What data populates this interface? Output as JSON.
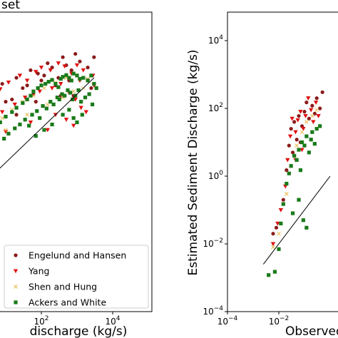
{
  "chart_data": [
    {
      "type": "scatter",
      "title": "set",
      "xlabel": "discharge (kg/s)",
      "ylabel": "",
      "xscale": "log",
      "yscale": "log",
      "xlim_visible": [
        0.1,
        100000
      ],
      "ylim_visible": [
        0.1,
        100000
      ],
      "x_tick_labels": [
        "10^2",
        "10^4"
      ],
      "x_ticks": [
        100,
        10000
      ],
      "grid": false,
      "legend_position": "bottom-right",
      "reference_line": {
        "x": [
          0.3,
          3000
        ],
        "y": [
          0.3,
          3000
        ]
      },
      "series": [
        {
          "name": "Engelund and Hansen",
          "marker": "circle",
          "color": "#8b1a1a",
          "points": [
            [
              0.5,
              200
            ],
            [
              1,
              300
            ],
            [
              2,
              500
            ],
            [
              3,
              800
            ],
            [
              5,
              1200
            ],
            [
              8,
              2000
            ],
            [
              10,
              600
            ],
            [
              20,
              3000
            ],
            [
              30,
              1500
            ],
            [
              50,
              5000
            ],
            [
              80,
              4000
            ],
            [
              100,
              2500
            ],
            [
              150,
              8000
            ],
            [
              200,
              6000
            ],
            [
              300,
              3000
            ],
            [
              400,
              12000
            ],
            [
              500,
              7000
            ],
            [
              700,
              5000
            ],
            [
              900,
              15000
            ],
            [
              1200,
              9000
            ],
            [
              2000,
              6000
            ],
            [
              3000,
              12000
            ],
            [
              0.8,
              80
            ],
            [
              1.5,
              150
            ],
            [
              4,
              400
            ],
            [
              6,
              900
            ],
            [
              15,
              700
            ],
            [
              40,
              1800
            ],
            [
              60,
              1000
            ],
            [
              120,
              3500
            ],
            [
              250,
              1800
            ],
            [
              600,
              2500
            ],
            [
              800,
              900
            ],
            [
              1500,
              3000
            ],
            [
              2500,
              1500
            ],
            [
              0.3,
              60
            ],
            [
              0.6,
              40
            ],
            [
              20,
              250
            ],
            [
              70,
              600
            ],
            [
              350,
              900
            ]
          ]
        },
        {
          "name": "Yang",
          "marker": "triangle-down",
          "color": "#e01010",
          "points": [
            [
              0.4,
              100
            ],
            [
              0.8,
              200
            ],
            [
              1.5,
              350
            ],
            [
              2.5,
              600
            ],
            [
              4,
              900
            ],
            [
              7,
              1400
            ],
            [
              12,
              2200
            ],
            [
              25,
              3500
            ],
            [
              40,
              2500
            ],
            [
              70,
              4500
            ],
            [
              100,
              6000
            ],
            [
              180,
              5000
            ],
            [
              300,
              8000
            ],
            [
              450,
              6500
            ],
            [
              700,
              4000
            ],
            [
              1000,
              7000
            ],
            [
              1500,
              5000
            ],
            [
              2000,
              2500
            ],
            [
              3000,
              1800
            ],
            [
              0.7,
              50
            ],
            [
              3,
              150
            ],
            [
              8,
              300
            ],
            [
              18,
              500
            ],
            [
              35,
              800
            ],
            [
              90,
              1200
            ],
            [
              200,
              1500
            ],
            [
              350,
              2000
            ],
            [
              600,
              1100
            ],
            [
              900,
              700
            ],
            [
              1300,
              400
            ],
            [
              1800,
              300
            ],
            [
              250,
              250
            ],
            [
              500,
              180
            ],
            [
              800,
              120
            ],
            [
              150,
              90
            ],
            [
              50,
              150
            ],
            [
              10,
              80
            ],
            [
              1200,
              2500
            ],
            [
              2800,
              3500
            ]
          ]
        },
        {
          "name": "Shen and Hung",
          "marker": "x",
          "color": "#e8b84a",
          "points": [
            [
              0.5,
              20
            ],
            [
              1,
              40
            ],
            [
              2,
              70
            ],
            [
              4,
              120
            ],
            [
              8,
              200
            ],
            [
              15,
              350
            ],
            [
              30,
              600
            ],
            [
              60,
              900
            ],
            [
              120,
              1500
            ],
            [
              250,
              2200
            ],
            [
              500,
              3000
            ],
            [
              1000,
              3500
            ],
            [
              2000,
              2800
            ],
            [
              3000,
              2000
            ],
            [
              0.8,
              10
            ],
            [
              3,
              30
            ],
            [
              10,
              90
            ],
            [
              40,
              250
            ],
            [
              150,
              500
            ],
            [
              400,
              800
            ],
            [
              800,
              1200
            ],
            [
              1500,
              1500
            ]
          ]
        },
        {
          "name": "Ackers and White",
          "marker": "square",
          "color": "#1a7a1a",
          "points": [
            [
              0.3,
              2
            ],
            [
              0.5,
              4
            ],
            [
              0.8,
              8
            ],
            [
              1,
              15
            ],
            [
              1.5,
              25
            ],
            [
              2,
              40
            ],
            [
              3,
              60
            ],
            [
              5,
              90
            ],
            [
              7,
              150
            ],
            [
              10,
              220
            ],
            [
              15,
              300
            ],
            [
              20,
              400
            ],
            [
              30,
              550
            ],
            [
              40,
              700
            ],
            [
              50,
              900
            ],
            [
              60,
              1200
            ],
            [
              80,
              1500
            ],
            [
              100,
              1800
            ],
            [
              130,
              2000
            ],
            [
              160,
              2300
            ],
            [
              200,
              2600
            ],
            [
              250,
              2000
            ],
            [
              300,
              1600
            ],
            [
              350,
              2800
            ],
            [
              400,
              3200
            ],
            [
              500,
              3600
            ],
            [
              600,
              3000
            ],
            [
              700,
              2500
            ],
            [
              800,
              4000
            ],
            [
              1000,
              3500
            ],
            [
              1200,
              2800
            ],
            [
              1500,
              3000
            ],
            [
              2000,
              2500
            ],
            [
              2500,
              3500
            ],
            [
              3000,
              2000
            ],
            [
              3500,
              1500
            ],
            [
              0.4,
              1
            ],
            [
              0.6,
              3
            ],
            [
              1.2,
              6
            ],
            [
              2.5,
              12
            ],
            [
              4,
              20
            ],
            [
              6,
              35
            ],
            [
              9,
              50
            ],
            [
              12,
              70
            ],
            [
              18,
              100
            ],
            [
              25,
              130
            ],
            [
              35,
              180
            ],
            [
              45,
              120
            ],
            [
              55,
              250
            ],
            [
              75,
              320
            ],
            [
              90,
              200
            ],
            [
              110,
              450
            ],
            [
              140,
              380
            ],
            [
              180,
              600
            ],
            [
              220,
              500
            ],
            [
              280,
              800
            ],
            [
              320,
              700
            ],
            [
              380,
              1000
            ],
            [
              450,
              900
            ],
            [
              550,
              1300
            ],
            [
              650,
              1100
            ],
            [
              750,
              700
            ],
            [
              900,
              900
            ],
            [
              1100,
              1300
            ],
            [
              1300,
              600
            ],
            [
              1700,
              800
            ],
            [
              2200,
              1000
            ],
            [
              2700,
              500
            ],
            [
              400,
              250
            ],
            [
              600,
              350
            ],
            [
              800,
              200
            ],
            [
              1000,
              150
            ],
            [
              1400,
              250
            ],
            [
              120,
              90
            ],
            [
              70,
              60
            ],
            [
              200,
              130
            ],
            [
              0.5,
              0.5
            ],
            [
              1,
              1.5
            ]
          ]
        }
      ]
    },
    {
      "type": "scatter",
      "title": "",
      "xlabel": "Observed",
      "ylabel": "Estimated Sediment Discharge (kg/s)",
      "xscale": "log",
      "yscale": "log",
      "xlim": [
        0.0001,
        1
      ],
      "ylim": [
        0.0001,
        100000
      ],
      "x_tick_labels": [
        "10^-4",
        "10^-2"
      ],
      "x_ticks": [
        0.0001,
        0.01
      ],
      "y_tick_labels": [
        "10^-4",
        "10^-2",
        "10^0",
        "10^2",
        "10^4"
      ],
      "y_ticks": [
        0.0001,
        0.01,
        1,
        100,
        10000
      ],
      "grid": false,
      "reference_line": {
        "x": [
          0.0025,
          1
        ],
        "y": [
          0.0025,
          1
        ]
      },
      "series": [
        {
          "name": "Engelund and Hansen",
          "marker": "circle",
          "color": "#8b1a1a",
          "points": [
            [
              0.006,
              0.02
            ],
            [
              0.008,
              0.03
            ],
            [
              0.015,
              0.2
            ],
            [
              0.02,
              1.5
            ],
            [
              0.025,
              8
            ],
            [
              0.03,
              25
            ],
            [
              0.04,
              40
            ],
            [
              0.05,
              12
            ],
            [
              0.06,
              60
            ],
            [
              0.08,
              30
            ],
            [
              0.1,
              80
            ],
            [
              0.12,
              150
            ],
            [
              0.15,
              50
            ],
            [
              0.2,
              120
            ],
            [
              0.25,
              70
            ],
            [
              0.3,
              200
            ],
            [
              0.4,
              100
            ],
            [
              0.035,
              5
            ],
            [
              0.07,
              10
            ],
            [
              0.5,
              300
            ]
          ]
        },
        {
          "name": "Yang",
          "marker": "triangle-down",
          "color": "#e01010",
          "points": [
            [
              0.006,
              0.01
            ],
            [
              0.009,
              0.04
            ],
            [
              0.012,
              0.1
            ],
            [
              0.018,
              0.5
            ],
            [
              0.022,
              3
            ],
            [
              0.028,
              15
            ],
            [
              0.033,
              50
            ],
            [
              0.045,
              20
            ],
            [
              0.055,
              45
            ],
            [
              0.07,
              80
            ],
            [
              0.09,
              25
            ],
            [
              0.11,
              60
            ],
            [
              0.14,
              200
            ],
            [
              0.18,
              90
            ],
            [
              0.22,
              40
            ],
            [
              0.28,
              150
            ],
            [
              0.35,
              60
            ],
            [
              0.045,
              3
            ],
            [
              0.08,
              6
            ]
          ]
        },
        {
          "name": "Shen and Hung",
          "marker": "x",
          "color": "#e8b84a",
          "points": [
            [
              0.006,
              0.008
            ],
            [
              0.01,
              0.02
            ],
            [
              0.02,
              0.3
            ],
            [
              0.03,
              2
            ],
            [
              0.05,
              8
            ],
            [
              0.08,
              20
            ],
            [
              0.12,
              40
            ],
            [
              0.2,
              60
            ],
            [
              0.3,
              90
            ]
          ]
        },
        {
          "name": "Ackers and White",
          "marker": "square",
          "color": "#1a7a1a",
          "points": [
            [
              0.007,
              0.0015
            ],
            [
              0.004,
              0.0012
            ],
            [
              0.01,
              0.007
            ],
            [
              0.012,
              0.04
            ],
            [
              0.015,
              0.15
            ],
            [
              0.02,
              0.6
            ],
            [
              0.025,
              1.2
            ],
            [
              0.03,
              2
            ],
            [
              0.04,
              4
            ],
            [
              0.05,
              3
            ],
            [
              0.06,
              6
            ],
            [
              0.07,
              1.5
            ],
            [
              0.08,
              10
            ],
            [
              0.1,
              8
            ],
            [
              0.12,
              15
            ],
            [
              0.15,
              5
            ],
            [
              0.18,
              12
            ],
            [
              0.2,
              20
            ],
            [
              0.25,
              9
            ],
            [
              0.3,
              25
            ],
            [
              0.4,
              30
            ],
            [
              0.09,
              0.05
            ],
            [
              0.12,
              0.03
            ],
            [
              0.06,
              0.2
            ],
            [
              0.035,
              0.08
            ]
          ]
        }
      ]
    }
  ],
  "legend": {
    "entries": [
      "Engelund and Hansen",
      "Yang",
      "Shen and Hung",
      "Ackers and White"
    ]
  }
}
